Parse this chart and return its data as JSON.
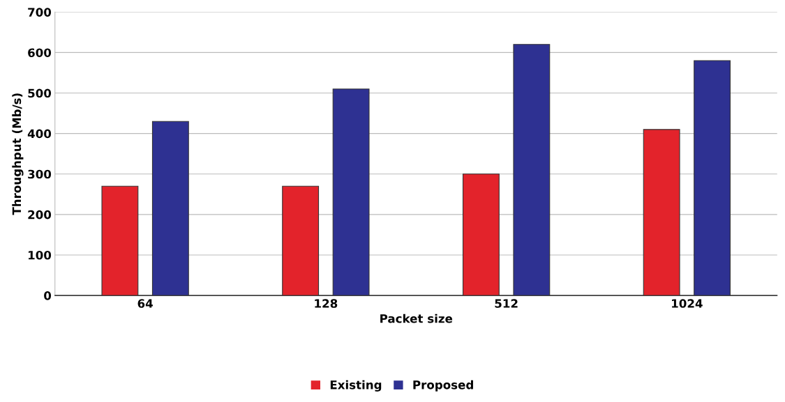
{
  "chart_data": {
    "type": "bar",
    "xlabel": "Packet size",
    "ylabel": "Throughput (Mb/s)",
    "categories": [
      "64",
      "128",
      "512",
      "1024"
    ],
    "series": [
      {
        "name": "Existing",
        "color": "#e3232b",
        "values": [
          270,
          270,
          300,
          410
        ]
      },
      {
        "name": "Proposed",
        "color": "#2e3192",
        "values": [
          430,
          510,
          620,
          580
        ]
      }
    ],
    "ylim": [
      0,
      700
    ],
    "yticks": [
      0,
      100,
      200,
      300,
      400,
      500,
      600,
      700
    ],
    "grid": "y",
    "legend": "bottom"
  }
}
